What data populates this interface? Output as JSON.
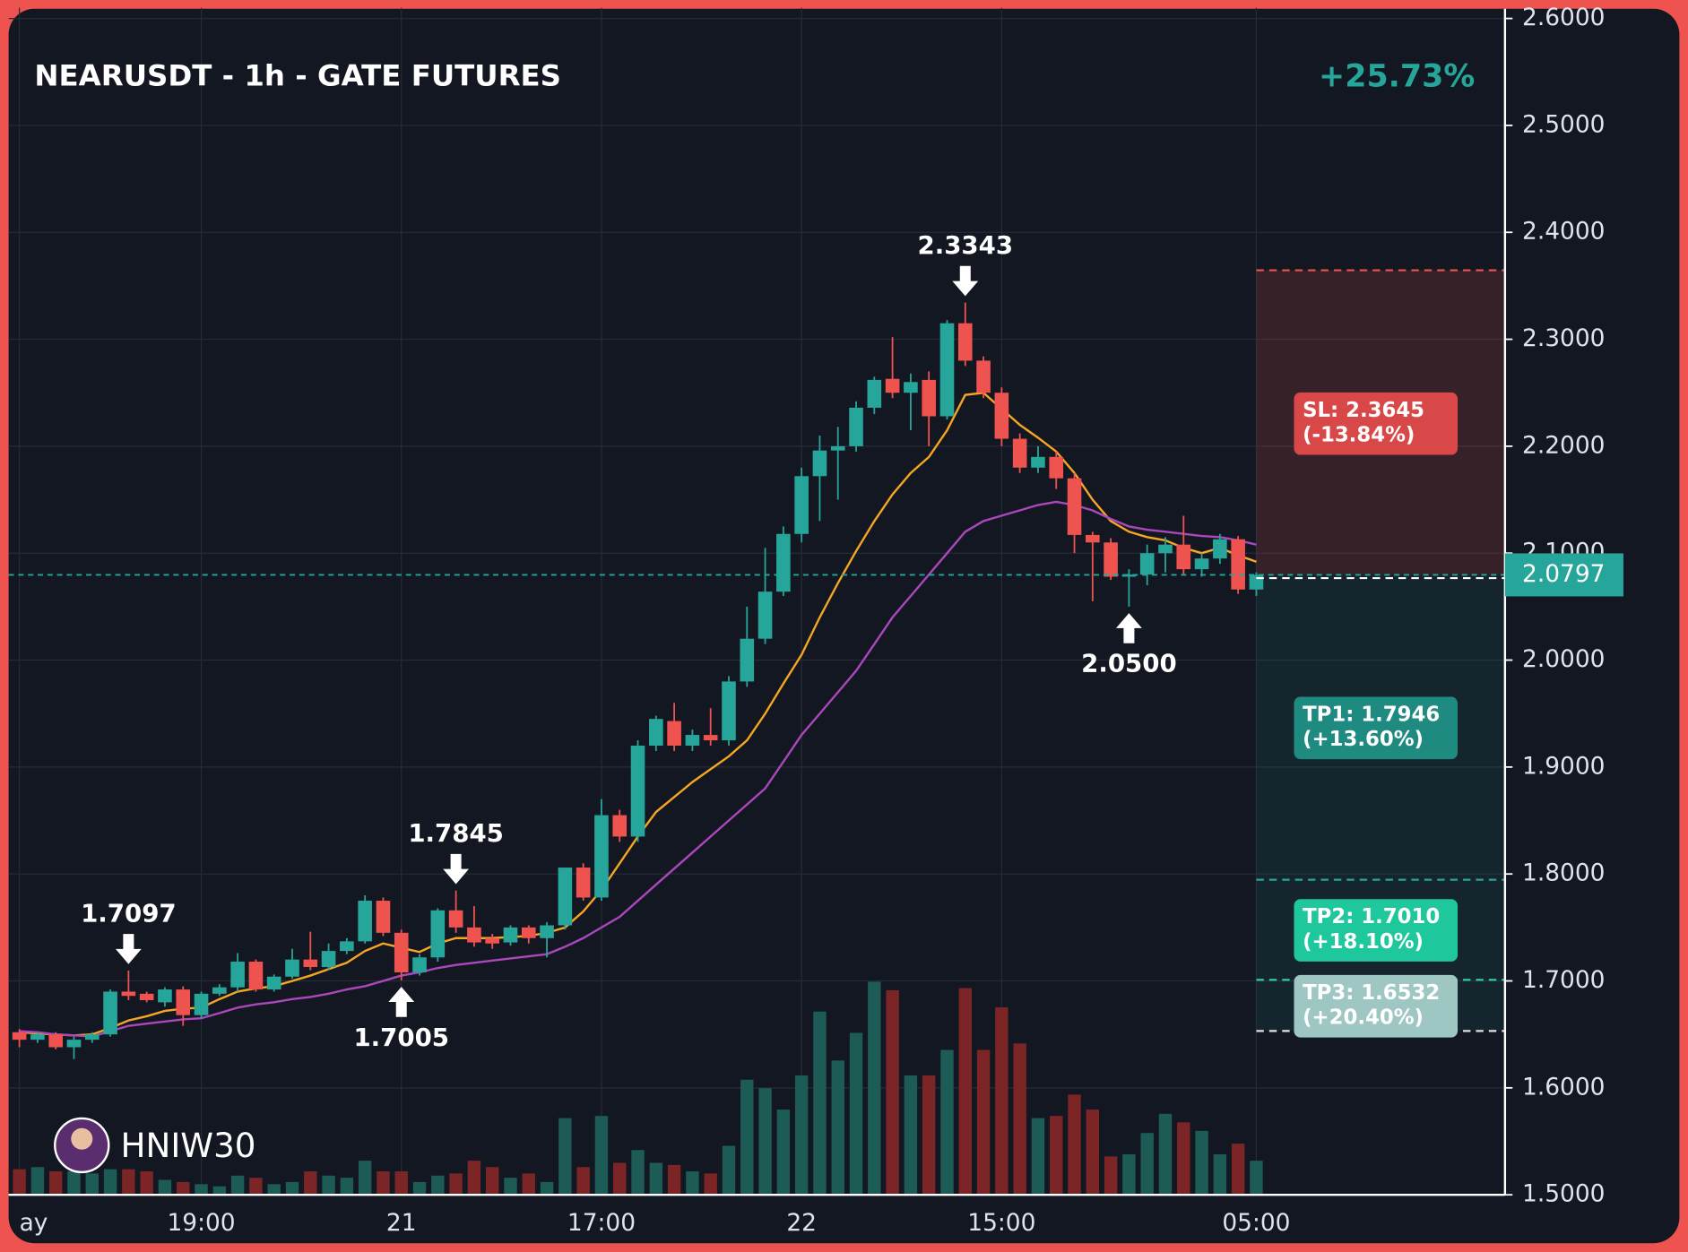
{
  "chart_data": {
    "type": "candlestick",
    "title": "NEARUSDT - 1h - GATE FUTURES",
    "change": "+25.73%",
    "watermark": "HNIW30",
    "categories": [
      "ay",
      null,
      null,
      null,
      null,
      null,
      null,
      null,
      null,
      null,
      "19:00",
      null,
      null,
      null,
      null,
      null,
      null,
      null,
      null,
      null,
      null,
      "21",
      null,
      null,
      null,
      null,
      null,
      null,
      null,
      null,
      null,
      null,
      "17:00",
      null,
      null,
      null,
      null,
      null,
      null,
      null,
      null,
      null,
      null,
      "22",
      null,
      null,
      null,
      null,
      null,
      null,
      null,
      null,
      null,
      null,
      "15:00",
      null,
      null,
      null,
      null,
      null,
      null,
      null,
      null,
      null,
      null,
      null,
      null,
      null,
      "05:00"
    ],
    "open": [
      1.652,
      1.645,
      1.65,
      1.638,
      1.645,
      1.65,
      1.69,
      1.688,
      1.68,
      1.692,
      1.668,
      1.688,
      1.694,
      1.718,
      1.692,
      1.704,
      1.72,
      1.713,
      1.728,
      1.737,
      1.775,
      1.745,
      1.708,
      1.722,
      1.766,
      1.75,
      1.74,
      1.736,
      1.75,
      1.74,
      1.752,
      1.806,
      1.778,
      1.855,
      1.835,
      1.92,
      1.943,
      1.92,
      1.93,
      1.925,
      1.98,
      2.02,
      2.064,
      2.118,
      2.172,
      2.196,
      2.2,
      2.236,
      2.263,
      2.25,
      2.262,
      2.228,
      2.315,
      2.28,
      2.25,
      2.207,
      2.18,
      2.19,
      2.17,
      2.117,
      2.11,
      2.078,
      2.08,
      2.1,
      2.108,
      2.085,
      2.095,
      2.113,
      2.066
    ],
    "high": [
      1.655,
      1.652,
      1.652,
      1.648,
      1.652,
      1.692,
      1.7097,
      1.69,
      1.694,
      1.695,
      1.69,
      1.697,
      1.726,
      1.72,
      1.706,
      1.73,
      1.746,
      1.735,
      1.74,
      1.78,
      1.778,
      1.748,
      1.725,
      1.768,
      1.7845,
      1.77,
      1.744,
      1.752,
      1.752,
      1.755,
      1.806,
      1.81,
      1.87,
      1.86,
      1.925,
      1.948,
      1.96,
      1.935,
      1.955,
      1.985,
      2.05,
      2.105,
      2.125,
      2.18,
      2.21,
      2.218,
      2.242,
      2.265,
      2.302,
      2.268,
      2.27,
      2.318,
      2.3343,
      2.284,
      2.255,
      2.212,
      2.2,
      2.195,
      2.175,
      2.12,
      2.114,
      2.085,
      2.108,
      2.115,
      2.135,
      2.1,
      2.118,
      2.116,
      2.082
    ],
    "low": [
      1.638,
      1.642,
      1.636,
      1.627,
      1.642,
      1.648,
      1.682,
      1.68,
      1.676,
      1.658,
      1.665,
      1.686,
      1.69,
      1.69,
      1.69,
      1.702,
      1.71,
      1.71,
      1.725,
      1.735,
      1.742,
      1.7005,
      1.705,
      1.718,
      1.745,
      1.732,
      1.73,
      1.733,
      1.735,
      1.722,
      1.748,
      1.775,
      1.775,
      1.83,
      1.83,
      1.915,
      1.915,
      1.915,
      1.92,
      1.92,
      1.975,
      2.015,
      2.06,
      2.11,
      2.13,
      2.15,
      2.195,
      2.23,
      2.245,
      2.215,
      2.2,
      2.225,
      2.275,
      2.245,
      2.2,
      2.175,
      2.175,
      2.16,
      2.1,
      2.055,
      2.075,
      2.05,
      2.07,
      2.082,
      2.08,
      2.078,
      2.09,
      2.062,
      2.06
    ],
    "close": [
      1.645,
      1.65,
      1.638,
      1.645,
      1.65,
      1.69,
      1.686,
      1.682,
      1.692,
      1.668,
      1.688,
      1.694,
      1.718,
      1.692,
      1.704,
      1.72,
      1.713,
      1.728,
      1.737,
      1.775,
      1.745,
      1.708,
      1.722,
      1.766,
      1.75,
      1.736,
      1.735,
      1.75,
      1.74,
      1.752,
      1.806,
      1.778,
      1.855,
      1.835,
      1.92,
      1.945,
      1.92,
      1.93,
      1.925,
      1.98,
      2.02,
      2.064,
      2.118,
      2.172,
      2.196,
      2.2,
      2.236,
      2.262,
      2.25,
      2.26,
      2.228,
      2.315,
      2.28,
      2.25,
      2.207,
      2.18,
      2.19,
      2.17,
      2.117,
      2.11,
      2.078,
      2.08,
      2.1,
      2.108,
      2.085,
      2.095,
      2.113,
      2.066,
      2.0797
    ],
    "volume": [
      12,
      13,
      11,
      11,
      10,
      12,
      12,
      11,
      7,
      6,
      5,
      4,
      9,
      8,
      5,
      6,
      11,
      9,
      8,
      16,
      11,
      11,
      6,
      9,
      10,
      16,
      13,
      8,
      10,
      6,
      36,
      13,
      37,
      15,
      21,
      15,
      14,
      11,
      10,
      23,
      54,
      50,
      40,
      56,
      86,
      63,
      76,
      100,
      96,
      56,
      56,
      68,
      97,
      68,
      88,
      71,
      36,
      37,
      47,
      40,
      18,
      19,
      29,
      38,
      34,
      30,
      19,
      24,
      16
    ],
    "up_color": "#26a69a",
    "down_color": "#ef5350",
    "up_volume_color": "#1d5b56",
    "down_volume_color": "#7b2527",
    "moving_averages": [
      {
        "color": "#f5a623",
        "values": [
          1.652,
          1.651,
          1.65,
          1.649,
          1.65,
          1.656,
          1.663,
          1.667,
          1.672,
          1.674,
          1.675,
          1.683,
          1.69,
          1.693,
          1.695,
          1.7,
          1.705,
          1.711,
          1.717,
          1.728,
          1.735,
          1.731,
          1.727,
          1.735,
          1.74,
          1.74,
          1.74,
          1.741,
          1.742,
          1.745,
          1.75,
          1.765,
          1.785,
          1.81,
          1.835,
          1.858,
          1.872,
          1.886,
          1.898,
          1.91,
          1.925,
          1.95,
          1.978,
          2.005,
          2.04,
          2.072,
          2.102,
          2.13,
          2.155,
          2.175,
          2.19,
          2.215,
          2.248,
          2.25,
          2.235,
          2.22,
          2.208,
          2.195,
          2.175,
          2.15,
          2.13,
          2.12,
          2.115,
          2.112,
          2.105,
          2.1,
          2.105,
          2.098,
          2.092
        ]
      },
      {
        "color": "#ab47bc",
        "values": [
          1.653,
          1.652,
          1.65,
          1.649,
          1.648,
          1.653,
          1.658,
          1.66,
          1.662,
          1.664,
          1.665,
          1.67,
          1.675,
          1.678,
          1.68,
          1.683,
          1.685,
          1.688,
          1.692,
          1.695,
          1.7,
          1.705,
          1.708,
          1.712,
          1.715,
          1.717,
          1.719,
          1.721,
          1.723,
          1.725,
          1.732,
          1.74,
          1.75,
          1.76,
          1.775,
          1.79,
          1.805,
          1.82,
          1.835,
          1.85,
          1.865,
          1.88,
          1.905,
          1.93,
          1.95,
          1.97,
          1.99,
          2.015,
          2.04,
          2.06,
          2.08,
          2.1,
          2.12,
          2.13,
          2.135,
          2.14,
          2.145,
          2.148,
          2.145,
          2.14,
          2.132,
          2.125,
          2.122,
          2.12,
          2.118,
          2.116,
          2.115,
          2.112,
          2.108
        ]
      }
    ],
    "annotations": [
      {
        "index": 6,
        "value": 1.7097,
        "label": "1.7097",
        "side": "above"
      },
      {
        "index": 21,
        "value": 1.7005,
        "label": "1.7005",
        "side": "below"
      },
      {
        "index": 24,
        "value": 1.7845,
        "label": "1.7845",
        "side": "above"
      },
      {
        "index": 52,
        "value": 2.3343,
        "label": "2.3343",
        "side": "above"
      },
      {
        "index": 61,
        "value": 2.05,
        "label": "2.0500",
        "side": "below"
      }
    ],
    "levels": [
      {
        "label": "SL: 2.3645",
        "sublabel": "(-13.84%)",
        "value": 2.3645,
        "color": "#d94848",
        "line_color": "#ef5350"
      },
      {
        "label": "TP1: 1.7946",
        "sublabel": "(+13.60%)",
        "value": 1.7946,
        "color": "#1f8a80",
        "line_color": "#26a69a"
      },
      {
        "label": "TP2: 1.7010",
        "sublabel": "(+18.10%)",
        "value": 1.701,
        "color": "#1fc79c",
        "line_color": "#2bd4a6"
      },
      {
        "label": "TP3: 1.6532",
        "sublabel": "(+20.40%)",
        "value": 1.6532,
        "color": "#9ec7c3",
        "line_color": "#e0e0e0"
      }
    ],
    "last_price": {
      "value": 2.0797,
      "label": "2.0797",
      "color": "#26a69a"
    },
    "ylim": [
      1.5,
      2.6
    ],
    "yticks": [
      {
        "value": 1.5,
        "label": "1.5000"
      },
      {
        "value": 1.6,
        "label": "1.6000"
      },
      {
        "value": 1.7,
        "label": "1.7000"
      },
      {
        "value": 1.8,
        "label": "1.8000"
      },
      {
        "value": 1.9,
        "label": "1.9000"
      },
      {
        "value": 2.0,
        "label": "2.0000"
      },
      {
        "value": 2.1,
        "label": "2.1000"
      },
      {
        "value": 2.2,
        "label": "2.2000"
      },
      {
        "value": 2.3,
        "label": "2.3000"
      },
      {
        "value": 2.4,
        "label": "2.4000"
      },
      {
        "value": 2.5,
        "label": "2.5000"
      },
      {
        "value": 2.6,
        "label": "2.6000"
      }
    ],
    "grid": true
  }
}
